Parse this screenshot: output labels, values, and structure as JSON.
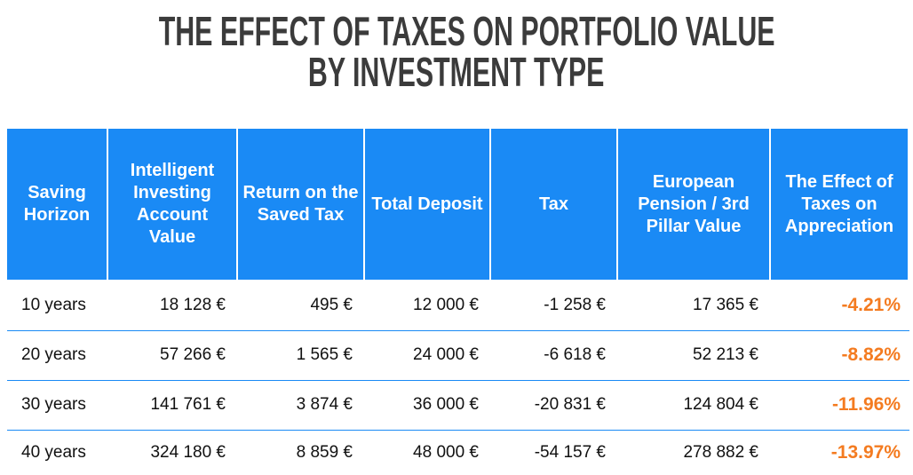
{
  "title": [
    "THE EFFECT OF TAXES ON PORTFOLIO VALUE",
    "BY INVESTMENT TYPE"
  ],
  "table": {
    "header": [
      "Saving Horizon",
      "Intelligent Investing Account Value",
      "Return on the Saved Tax",
      "Total Deposit",
      "Tax",
      "European Pension / 3rd Pillar Value",
      "The Effect of Taxes on Appreciation"
    ],
    "rows": [
      [
        "10 years",
        "18 128 €",
        "495 €",
        "12 000 €",
        "-1 258 €",
        "17 365 €",
        "-4.21%"
      ],
      [
        "20 years",
        "57 266 €",
        "1 565 €",
        "24 000 €",
        "-6 618 €",
        "52 213 €",
        "-8.82%"
      ],
      [
        "30 years",
        "141 761 €",
        "3 874 €",
        "36 000 €",
        "-20 831 €",
        "124 804 €",
        "-11.96%"
      ],
      [
        "40 years",
        "324 180 €",
        "8 859 €",
        "48 000 €",
        "-54 157 €",
        "278 882 €",
        "-13.97%"
      ]
    ]
  }
}
